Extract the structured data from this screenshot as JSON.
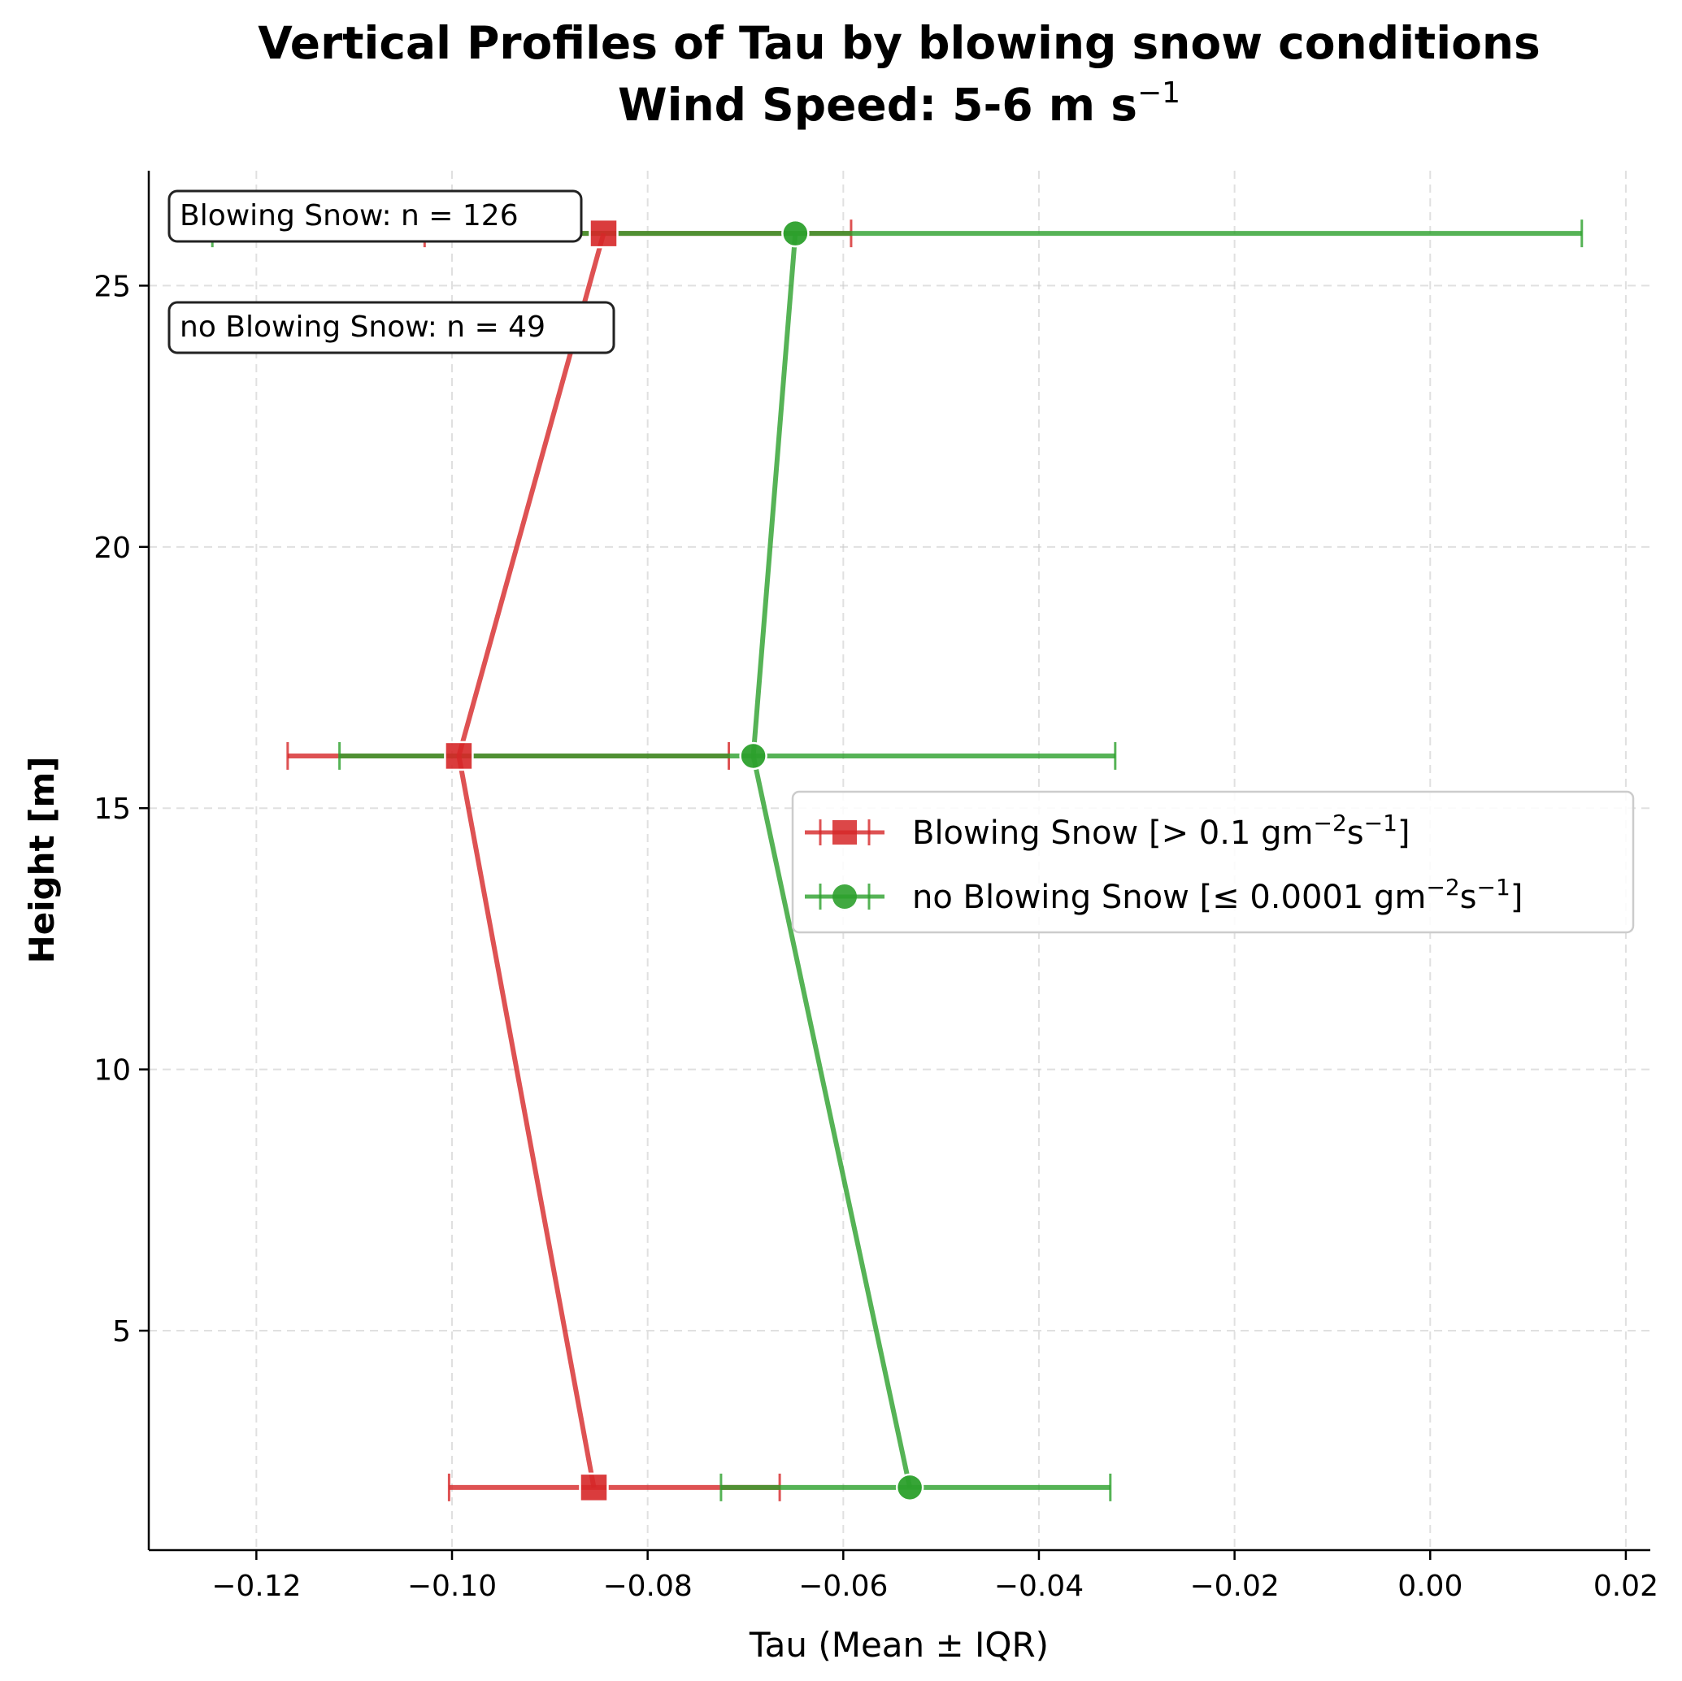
{
  "chart_data": {
    "type": "line",
    "title_line1": "Vertical Profiles of Tau by blowing snow conditions",
    "title_line2": "Wind Speed: 5-6 m s",
    "title_line2_sup": "−1",
    "xlabel": "Tau (Mean ± IQR)",
    "ylabel": "Height [m]",
    "xlim": [
      -0.131,
      0.0225
    ],
    "ylim": [
      0.8,
      27.2
    ],
    "xticks": [
      -0.12,
      -0.1,
      -0.08,
      -0.06,
      -0.04,
      -0.02,
      0.0,
      0.02
    ],
    "xtick_labels": [
      "−0.12",
      "−0.10",
      "−0.08",
      "−0.06",
      "−0.04",
      "−0.02",
      "0.00",
      "0.02"
    ],
    "yticks": [
      5,
      10,
      15,
      20,
      25
    ],
    "ytick_labels": [
      "5",
      "10",
      "15",
      "20",
      "25"
    ],
    "grid": true,
    "legend_placement": "center-right",
    "series": [
      {
        "name": "Blowing Snow [> 0.1 gm",
        "name_sup1": "−2",
        "name_mid": "s",
        "name_sup2": "−1",
        "name_end": "]",
        "color": "#d62728",
        "marker": "square",
        "heights": [
          2,
          16,
          26
        ],
        "means": [
          -0.0855,
          -0.0993,
          -0.0845
        ],
        "iqr_low": [
          -0.1003,
          -0.1168,
          -0.1028
        ],
        "iqr_high": [
          -0.0665,
          -0.0717,
          -0.0592
        ]
      },
      {
        "name": "no Blowing Snow [≤ 0.0001 gm",
        "name_sup1": "−2",
        "name_mid": "s",
        "name_sup2": "−1",
        "name_end": "]",
        "color": "#2ca02c",
        "marker": "circle",
        "heights": [
          2,
          16,
          26
        ],
        "means": [
          -0.0532,
          -0.0692,
          -0.0649
        ],
        "iqr_low": [
          -0.0725,
          -0.1115,
          -0.1245
        ],
        "iqr_high": [
          -0.0327,
          -0.0322,
          0.0155
        ]
      }
    ],
    "annotations": [
      "Blowing Snow: n = 126",
      "no Blowing Snow: n = 49"
    ]
  }
}
